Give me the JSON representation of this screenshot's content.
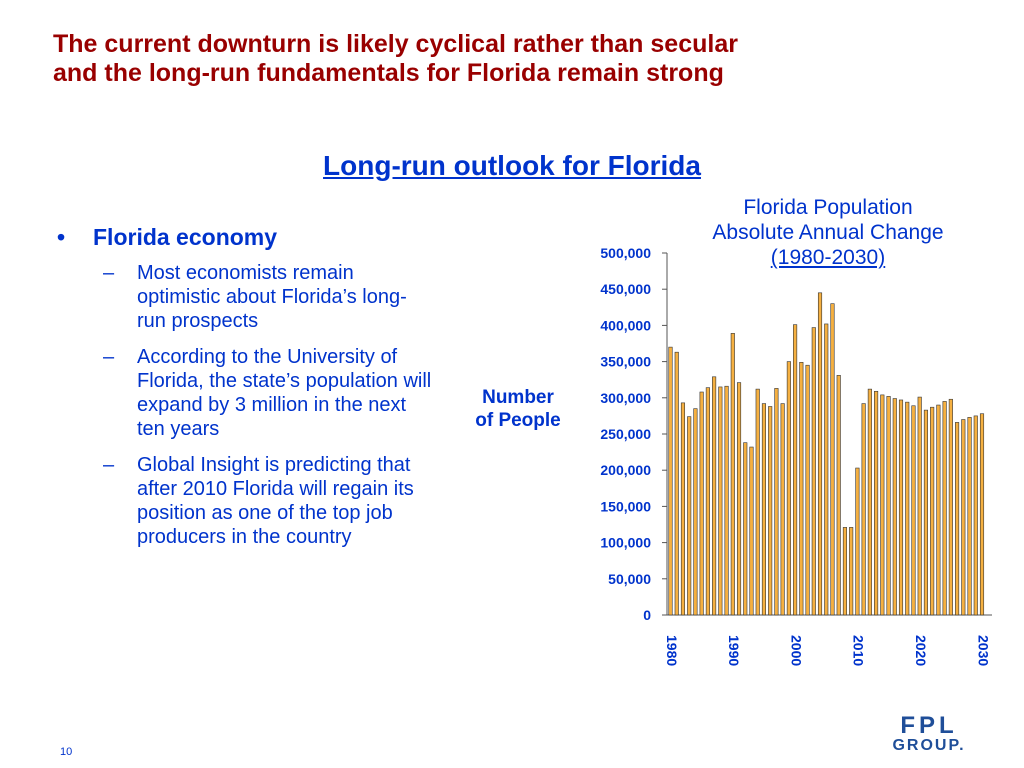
{
  "headline": {
    "line1": "The current downturn is likely cyclical rather than secular",
    "line2": "and the long-run fundamentals for Florida remain strong"
  },
  "section_title": "Long-run outlook for Florida",
  "bullets": {
    "main": "Florida economy",
    "subs": [
      "Most economists remain optimistic about Florida’s long-run prospects",
      "According to the University of Florida, the state’s population will expand by 3 million in the next ten years",
      "Global Insight is predicting that after 2010 Florida will regain its position as one of the top job producers in the country"
    ]
  },
  "page_number": "10",
  "logo": {
    "line1": "FPL",
    "line2": "GROUP."
  },
  "chart_data": {
    "type": "bar",
    "title_line1": "Florida Population",
    "title_line2": "Absolute Annual Change",
    "title_line3": "(1980-2030)",
    "ylabel_line1": "Number",
    "ylabel_line2": "of People",
    "ylim": [
      0,
      500000
    ],
    "yticks": [
      0,
      50000,
      100000,
      150000,
      200000,
      250000,
      300000,
      350000,
      400000,
      450000,
      500000
    ],
    "ytick_labels": [
      "0",
      "50,000",
      "100,000",
      "150,000",
      "200,000",
      "250,000",
      "300,000",
      "350,000",
      "400,000",
      "450,000",
      "500,000"
    ],
    "xtick_labels": [
      "1980",
      "1990",
      "2000",
      "2010",
      "2020",
      "2030"
    ],
    "bar_color": "#f5b041",
    "categories": [
      1980,
      1981,
      1982,
      1983,
      1984,
      1985,
      1986,
      1987,
      1988,
      1989,
      1990,
      1991,
      1992,
      1993,
      1994,
      1995,
      1996,
      1997,
      1998,
      1999,
      2000,
      2001,
      2002,
      2003,
      2004,
      2005,
      2006,
      2007,
      2008,
      2009,
      2010,
      2011,
      2012,
      2013,
      2014,
      2015,
      2016,
      2017,
      2018,
      2019,
      2020,
      2021,
      2022,
      2023,
      2024,
      2025,
      2026,
      2027,
      2028,
      2029,
      2030
    ],
    "values": [
      370000,
      363000,
      293000,
      274000,
      285000,
      308000,
      314000,
      329000,
      315000,
      316000,
      389000,
      321000,
      238000,
      232000,
      312000,
      292000,
      288000,
      313000,
      292000,
      350000,
      401000,
      349000,
      345000,
      397000,
      445000,
      402000,
      430000,
      331000,
      121000,
      121000,
      203000,
      292000,
      312000,
      309000,
      304000,
      302000,
      299000,
      297000,
      294000,
      289000,
      301000,
      283000,
      287000,
      290000,
      295000,
      298000,
      266000,
      270000,
      273000,
      275000,
      278000
    ]
  }
}
